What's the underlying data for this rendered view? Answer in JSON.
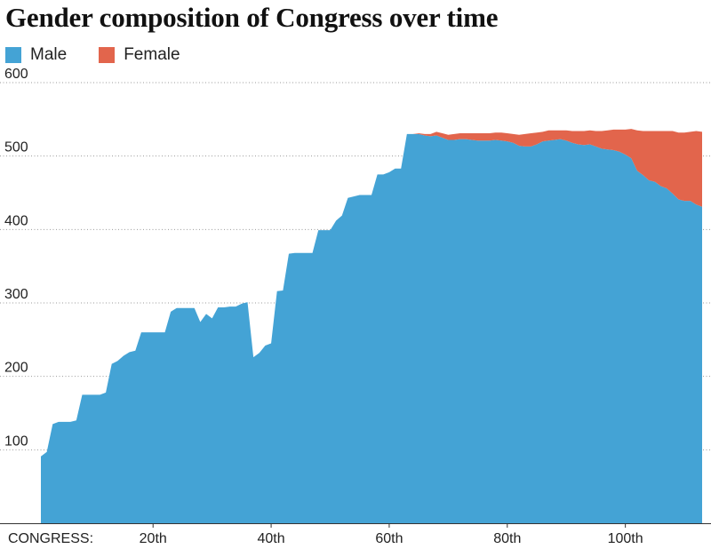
{
  "chart_data": {
    "type": "area",
    "stacked": true,
    "title": "Gender composition of Congress over time",
    "x_label_prefix": "CONGRESS:",
    "x_ticks": [
      {
        "x": 20,
        "label": "20th"
      },
      {
        "x": 40,
        "label": "40th"
      },
      {
        "x": 60,
        "label": "60th"
      },
      {
        "x": 80,
        "label": "80th"
      },
      {
        "x": 100,
        "label": "100th"
      }
    ],
    "y_ticks": [
      100,
      200,
      300,
      400,
      500,
      600
    ],
    "xlim": [
      1,
      113
    ],
    "ylim": [
      0,
      600
    ],
    "grid": true,
    "legend_position": "top-left",
    "colors": {
      "Male": "#44a3d5",
      "Female": "#e2654c"
    },
    "x": [
      1,
      2,
      3,
      4,
      5,
      6,
      7,
      8,
      9,
      10,
      11,
      12,
      13,
      14,
      15,
      16,
      17,
      18,
      19,
      20,
      21,
      22,
      23,
      24,
      25,
      26,
      27,
      28,
      29,
      30,
      31,
      32,
      33,
      34,
      35,
      36,
      37,
      38,
      39,
      40,
      41,
      42,
      43,
      44,
      45,
      46,
      47,
      48,
      49,
      50,
      51,
      52,
      53,
      54,
      55,
      56,
      57,
      58,
      59,
      60,
      61,
      62,
      63,
      64,
      65,
      66,
      67,
      68,
      69,
      70,
      71,
      72,
      73,
      74,
      75,
      76,
      77,
      78,
      79,
      80,
      81,
      82,
      83,
      84,
      85,
      86,
      87,
      88,
      89,
      90,
      91,
      92,
      93,
      94,
      95,
      96,
      97,
      98,
      99,
      100,
      101,
      102,
      103,
      104,
      105,
      106,
      107,
      108,
      109,
      110,
      111,
      112,
      113
    ],
    "series": [
      {
        "name": "Male",
        "values": [
          91,
          97,
          135,
          138,
          138,
          138,
          140,
          175,
          175,
          175,
          175,
          178,
          217,
          221,
          228,
          233,
          235,
          260,
          260,
          260,
          260,
          260,
          288,
          293,
          293,
          293,
          293,
          274,
          285,
          279,
          294,
          294,
          295,
          295,
          299,
          301,
          226,
          232,
          242,
          245,
          316,
          317,
          367,
          368,
          368,
          368,
          368,
          399,
          399,
          399,
          412,
          419,
          443,
          445,
          447,
          447,
          447,
          475,
          475,
          478,
          483,
          483,
          530,
          530,
          530,
          528,
          527,
          528,
          525,
          522,
          522,
          523,
          523,
          522,
          521,
          521,
          521,
          522,
          521,
          520,
          518,
          514,
          513,
          513,
          516,
          520,
          521,
          522,
          523,
          521,
          518,
          516,
          515,
          516,
          513,
          510,
          509,
          508,
          506,
          502,
          497,
          480,
          474,
          467,
          465,
          459,
          456,
          449,
          441,
          439,
          439,
          434,
          431
        ]
      },
      {
        "name": "Female",
        "values": [
          0,
          0,
          0,
          0,
          0,
          0,
          0,
          0,
          0,
          0,
          0,
          0,
          0,
          0,
          0,
          0,
          0,
          0,
          0,
          0,
          0,
          0,
          0,
          0,
          0,
          0,
          0,
          0,
          0,
          0,
          0,
          0,
          0,
          0,
          0,
          0,
          0,
          0,
          0,
          0,
          0,
          0,
          0,
          0,
          0,
          0,
          0,
          0,
          0,
          0,
          0,
          0,
          0,
          0,
          0,
          0,
          0,
          0,
          0,
          0,
          0,
          0,
          0,
          0,
          1,
          2,
          3,
          5,
          6,
          7,
          8,
          8,
          8,
          9,
          10,
          10,
          10,
          10,
          11,
          11,
          12,
          15,
          17,
          18,
          16,
          13,
          14,
          13,
          12,
          14,
          16,
          18,
          19,
          19,
          21,
          24,
          26,
          28,
          30,
          34,
          40,
          55,
          60,
          67,
          69,
          75,
          78,
          85,
          91,
          93,
          94,
          100,
          102
        ]
      }
    ]
  }
}
